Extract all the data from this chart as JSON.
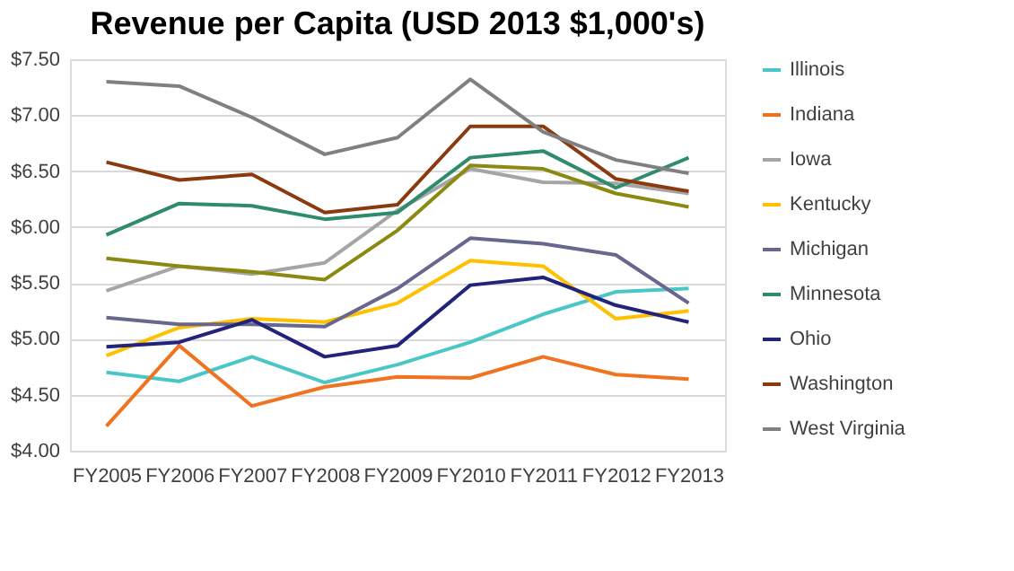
{
  "chart_data": {
    "type": "line",
    "title": "Revenue per Capita (USD 2013 $1,000's)",
    "categories": [
      "FY2005",
      "FY2006",
      "FY2007",
      "FY2008",
      "FY2009",
      "FY2010",
      "FY2011",
      "FY2012",
      "FY2013"
    ],
    "series": [
      {
        "name": "Illinois",
        "color": "#4bc6c6",
        "values": [
          4.7,
          4.62,
          4.84,
          4.61,
          4.77,
          4.97,
          5.22,
          5.42,
          5.45
        ]
      },
      {
        "name": "Indiana",
        "color": "#f07322",
        "values": [
          4.22,
          4.94,
          4.4,
          4.57,
          4.66,
          4.65,
          4.84,
          4.68,
          4.64
        ]
      },
      {
        "name": "Iowa",
        "color": "#a5a5a5",
        "values": [
          5.43,
          5.65,
          5.58,
          5.68,
          6.15,
          6.52,
          6.4,
          6.39,
          6.3
        ]
      },
      {
        "name": "Kentucky",
        "color": "#ffc000",
        "values": [
          4.85,
          5.1,
          5.18,
          5.15,
          5.32,
          5.7,
          5.65,
          5.18,
          5.25
        ]
      },
      {
        "name": "Michigan",
        "color": "#67678f",
        "values": [
          5.19,
          5.13,
          5.13,
          5.11,
          5.45,
          5.9,
          5.85,
          5.75,
          5.32
        ]
      },
      {
        "name": "Minnesota",
        "color": "#2e8b6e",
        "values": [
          5.93,
          6.21,
          6.19,
          6.07,
          6.13,
          6.62,
          6.68,
          6.35,
          6.62
        ]
      },
      {
        "name": "Ohio",
        "color": "#22237a",
        "values": [
          4.93,
          4.97,
          5.17,
          4.84,
          4.94,
          5.48,
          5.55,
          5.3,
          5.15
        ]
      },
      {
        "name": "Washington",
        "color": "#8b3a0f",
        "values": [
          6.58,
          6.42,
          6.47,
          6.13,
          6.2,
          6.9,
          6.9,
          6.43,
          6.32
        ]
      },
      {
        "name": "West Virginia",
        "color": "#808080",
        "values": [
          7.3,
          7.26,
          6.98,
          6.65,
          6.8,
          7.32,
          6.85,
          6.6,
          6.48
        ]
      },
      {
        "color": "#8a8a10",
        "values": [
          5.72,
          5.65,
          5.6,
          5.53,
          5.97,
          6.55,
          6.52,
          6.3,
          6.18
        ]
      }
    ],
    "ylim": [
      4.0,
      7.5
    ],
    "yticks": [
      {
        "value": 4.0,
        "label": "$4.00"
      },
      {
        "value": 4.5,
        "label": "$4.50"
      },
      {
        "value": 5.0,
        "label": "$5.00"
      },
      {
        "value": 5.5,
        "label": "$5.50"
      },
      {
        "value": 6.0,
        "label": "$6.00"
      },
      {
        "value": 6.5,
        "label": "$6.50"
      },
      {
        "value": 7.0,
        "label": "$7.00"
      },
      {
        "value": 7.5,
        "label": "$7.50"
      }
    ],
    "grid": "y",
    "legend": "right",
    "marker": "none",
    "line_style": "solid"
  }
}
